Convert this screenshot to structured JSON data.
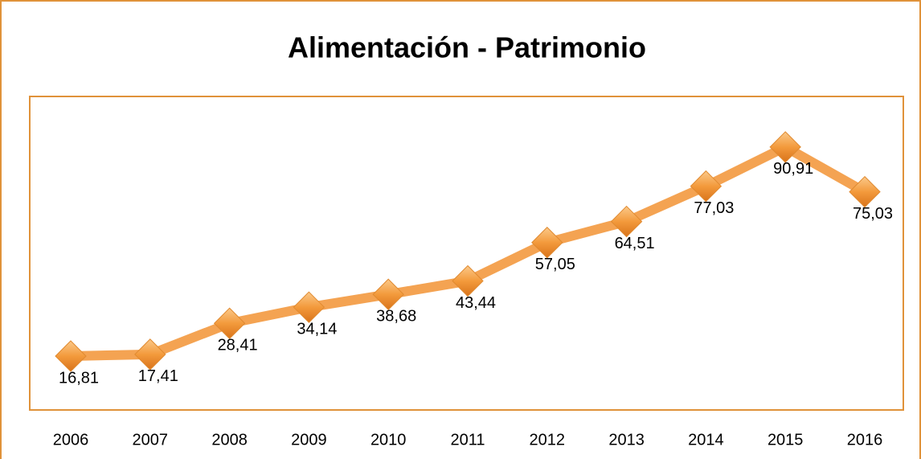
{
  "chart_data": {
    "type": "line",
    "title": "Alimentación - Patrimonio",
    "categories": [
      "2006",
      "2007",
      "2008",
      "2009",
      "2010",
      "2011",
      "2012",
      "2013",
      "2014",
      "2015",
      "2016"
    ],
    "values": [
      16.81,
      17.41,
      28.41,
      34.14,
      38.68,
      43.44,
      57.05,
      64.51,
      77.03,
      90.91,
      75.03
    ],
    "value_labels": [
      "16,81",
      "17,41",
      "28,41",
      "34,14",
      "38,68",
      "43,44",
      "57,05",
      "64,51",
      "77,03",
      "90,91",
      "75,03"
    ],
    "color": "#f4a352",
    "ylim": [
      0,
      100
    ]
  }
}
